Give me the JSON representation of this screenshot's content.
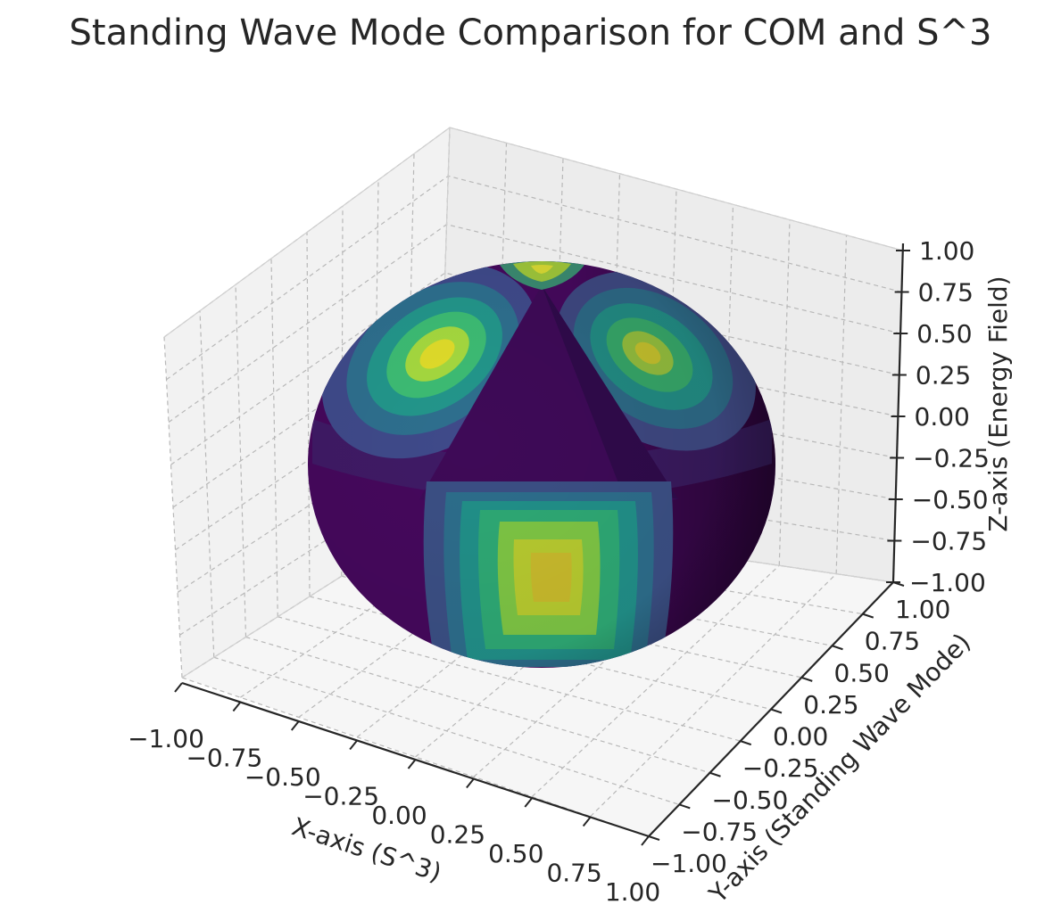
{
  "chart_data": {
    "type": "surface3d",
    "title": "Standing Wave Mode Comparison for COM and S^3",
    "xlabel": "X-axis (S^3)",
    "ylabel": "Y-axis (Standing Wave Mode)",
    "zlabel": "Z-axis (Energy Field)",
    "xlim": [
      -1.0,
      1.0
    ],
    "ylim": [
      -1.0,
      1.0
    ],
    "zlim": [
      -1.0,
      1.0
    ],
    "x_ticks": [
      "−1.00",
      "−0.75",
      "−0.50",
      "−0.25",
      "0.00",
      "0.25",
      "0.50",
      "0.75",
      "1.00"
    ],
    "y_ticks": [
      "−1.00",
      "−0.75",
      "−0.50",
      "−0.25",
      "0.00",
      "0.25",
      "0.50",
      "0.75",
      "1.00"
    ],
    "z_ticks": [
      "−1.00",
      "−0.75",
      "−0.50",
      "−0.25",
      "0.00",
      "0.25",
      "0.50",
      "0.75",
      "1.00"
    ],
    "surface": "unit sphere, color = |standing wave amplitude|",
    "colormap": "viridis",
    "grid": true
  }
}
